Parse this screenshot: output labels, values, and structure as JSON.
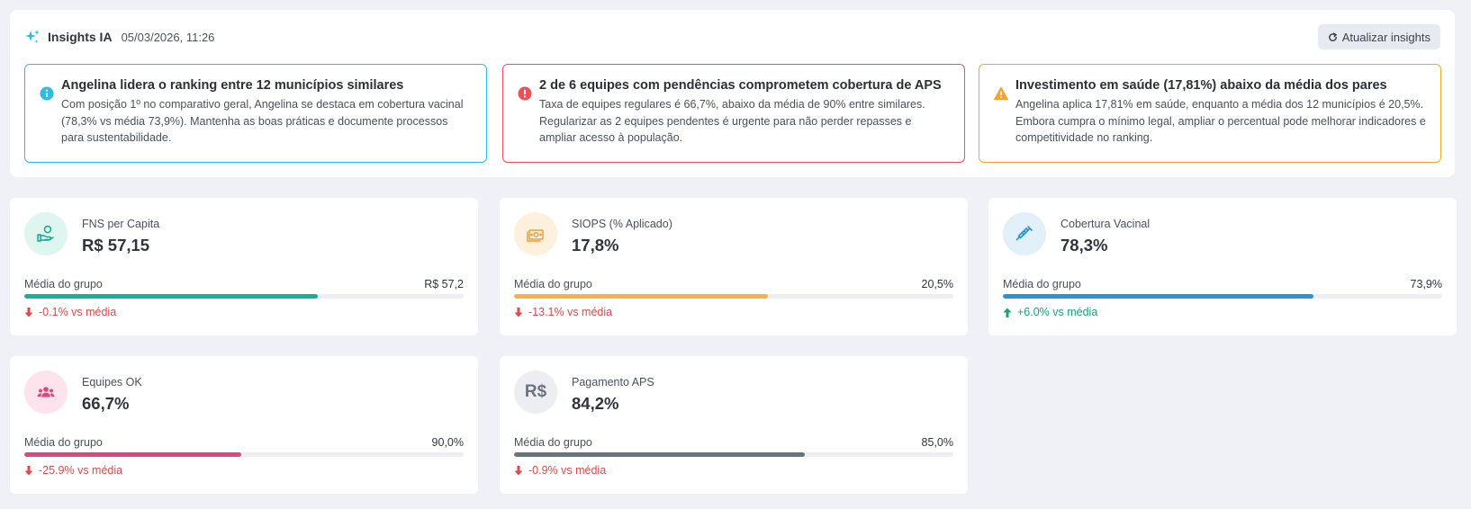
{
  "insights": {
    "title": "Insights IA",
    "timestamp": "05/03/2026, 11:26",
    "refresh_label": "Atualizar insights",
    "cards": [
      {
        "title": "Angelina lidera o ranking entre 12 municípios similares",
        "text": "Com posição 1º no comparativo geral, Angelina se destaca em cobertura vacinal (78,3% vs média 73,9%). Mantenha as boas práticas e documente processos para sustentabilidade.",
        "icon": "info-icon",
        "color": "#2bbde6"
      },
      {
        "title": "2 de 6 equipes com pendências comprometem cobertura de APS",
        "text": "Taxa de equipes regulares é 66,7%, abaixo da média de 90% entre similares. Regularizar as 2 equipes pendentes é urgente para não perder repasses e ampliar acesso à população.",
        "icon": "alert-circle-icon",
        "color": "#ef4f57"
      },
      {
        "title": "Investimento em saúde (17,81%) abaixo da média dos pares",
        "text": "Angelina aplica 17,81% em saúde, enquanto a média dos 12 municípios é 20,5%. Embora cumpra o mínimo legal, ampliar o percentual pode melhorar indicadores e competitividade no ranking.",
        "icon": "warning-icon",
        "color": "#f4a42c"
      }
    ]
  },
  "kpis": [
    {
      "label": "FNS per Capita",
      "value": "R$ 57,15",
      "group_label": "Média do grupo",
      "group_value": "R$ 57,2",
      "progress": 0.668,
      "bar_color": "#17b093",
      "delta": "-0.1% vs média",
      "trend": "down",
      "icon": "hand-coin-icon",
      "icon_bg": "#dff5f0",
      "icon_color": "#17a58a"
    },
    {
      "label": "SIOPS (% Aplicado)",
      "value": "17,8%",
      "group_label": "Média do grupo",
      "group_value": "20,5%",
      "progress": 0.578,
      "bar_color": "#f6b24a",
      "delta": "-13.1% vs média",
      "trend": "down",
      "icon": "money-icon",
      "icon_bg": "#fdf1de",
      "icon_color": "#e8a03a"
    },
    {
      "label": "Cobertura Vacinal",
      "value": "78,3%",
      "group_label": "Média do grupo",
      "group_value": "73,9%",
      "progress": 0.706,
      "bar_color": "#2b93d8",
      "delta": "+6.0% vs média",
      "trend": "up",
      "icon": "syringe-icon",
      "icon_bg": "#e2f0fa",
      "icon_color": "#2b93d8"
    },
    {
      "label": "Equipes OK",
      "value": "66,7%",
      "group_label": "Média do grupo",
      "group_value": "90,0%",
      "progress": 0.494,
      "bar_color": "#e0457f",
      "delta": "-25.9% vs média",
      "trend": "down",
      "icon": "users-icon",
      "icon_bg": "#fde3ec",
      "icon_color": "#e0457f"
    },
    {
      "label": "Pagamento APS",
      "value": "84,2%",
      "group_label": "Média do grupo",
      "group_value": "85,0%",
      "progress": 0.662,
      "bar_color": "#6b7280",
      "delta": "-0.9% vs média",
      "trend": "down",
      "icon": "real-currency-icon",
      "icon_text": "R$",
      "icon_bg": "#eceef2",
      "icon_color": "#6b7280"
    }
  ]
}
